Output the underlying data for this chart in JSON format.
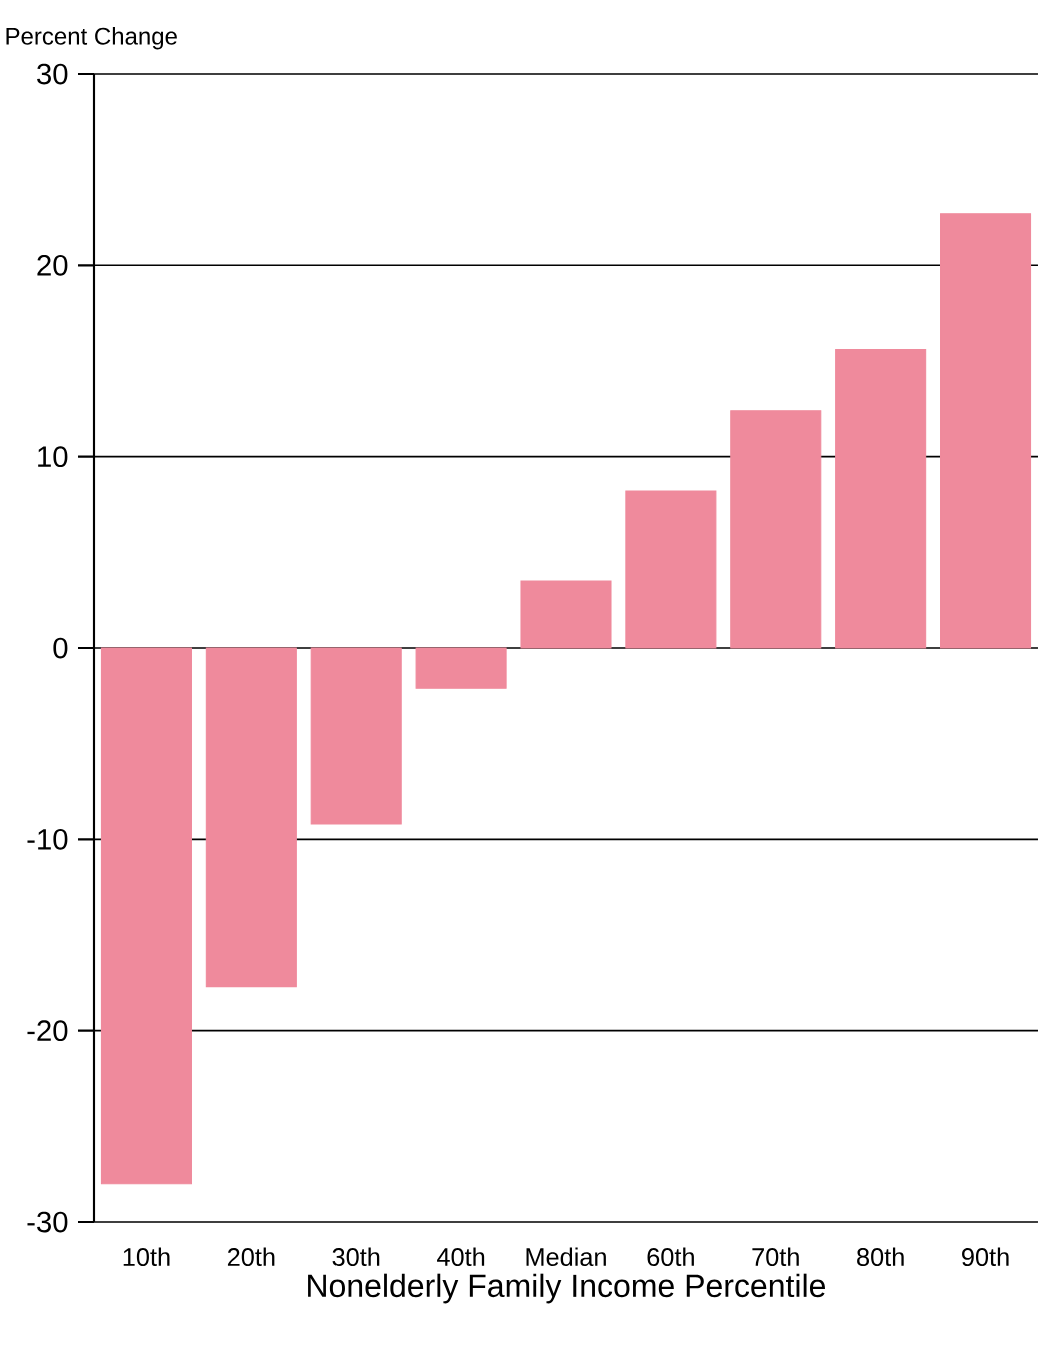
{
  "chart_data": {
    "type": "bar",
    "ylabel": "Percent Change",
    "xlabel": "Nonelderly Family Income Percentile",
    "categories": [
      "10th",
      "20th",
      "30th",
      "40th",
      "Median",
      "60th",
      "70th",
      "80th",
      "90th"
    ],
    "values": [
      -28.0,
      -17.7,
      -9.2,
      -2.1,
      3.5,
      8.2,
      12.4,
      15.6,
      22.7
    ],
    "color": "#ef8a9c",
    "ylim": [
      -30,
      30
    ],
    "yticks": [
      -30,
      -20,
      -10,
      0,
      10,
      20,
      30
    ],
    "grid": "y"
  }
}
